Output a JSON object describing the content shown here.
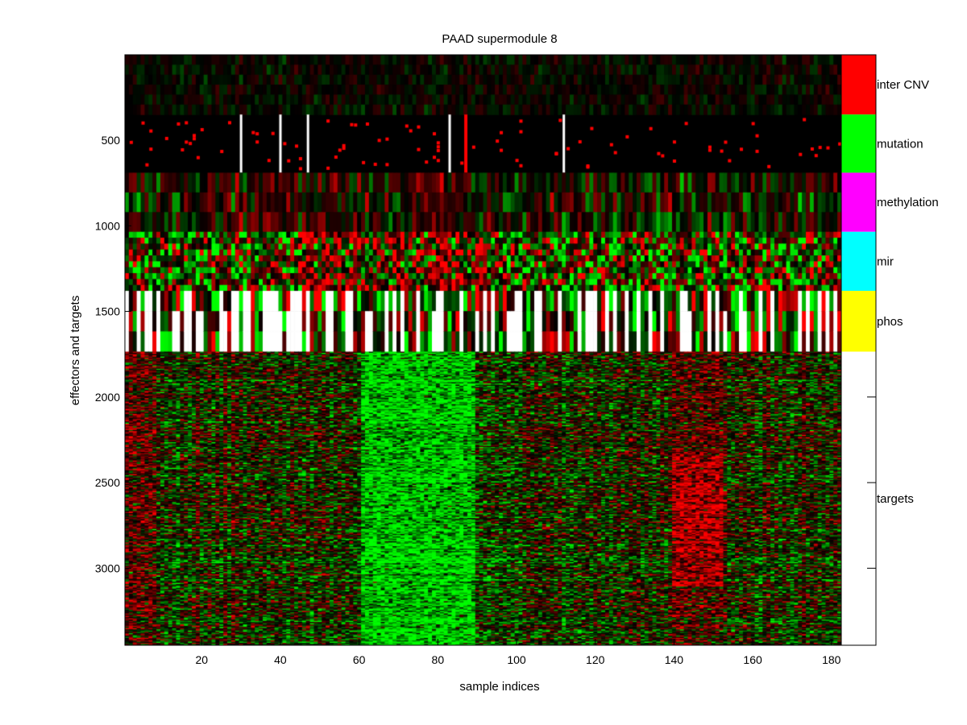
{
  "chart_data": {
    "type": "heatmap",
    "title": "PAAD supermodule 8",
    "xlabel": "sample indices",
    "ylabel": "effectors and targets",
    "xlim": [
      0.5,
      182.5
    ],
    "ylim": [
      1,
      3450
    ],
    "x_ticks": [
      20,
      40,
      60,
      80,
      100,
      120,
      140,
      160,
      180
    ],
    "y_ticks": [
      500,
      1000,
      1500,
      2000,
      2500,
      3000
    ],
    "colors": {
      "up": "#ff0000",
      "down": "#00ff00",
      "zero": "#000000",
      "missing": "#ffffff",
      "mutation_mark": "#ff0000"
    },
    "bands": [
      {
        "name": "inter CNV",
        "rows": [
          1,
          350
        ],
        "color": "#ff0000"
      },
      {
        "name": "mutation",
        "rows": [
          350,
          690
        ],
        "color": "#00ff00"
      },
      {
        "name": "methylation",
        "rows": [
          690,
          1035
        ],
        "color": "#ff00ff"
      },
      {
        "name": "mir",
        "rows": [
          1035,
          1380
        ],
        "color": "#00ffff"
      },
      {
        "name": "phos",
        "rows": [
          1380,
          1735
        ],
        "color": "#ffff00"
      },
      {
        "name": "targets",
        "rows": [
          1735,
          3450
        ],
        "color": "#ffffff"
      }
    ],
    "mutation_white_columns": [
      30,
      40,
      47,
      83,
      112
    ],
    "mutation_strong_column": 87,
    "target_green_block": [
      61,
      89
    ],
    "target_red_block": [
      140,
      152
    ]
  }
}
